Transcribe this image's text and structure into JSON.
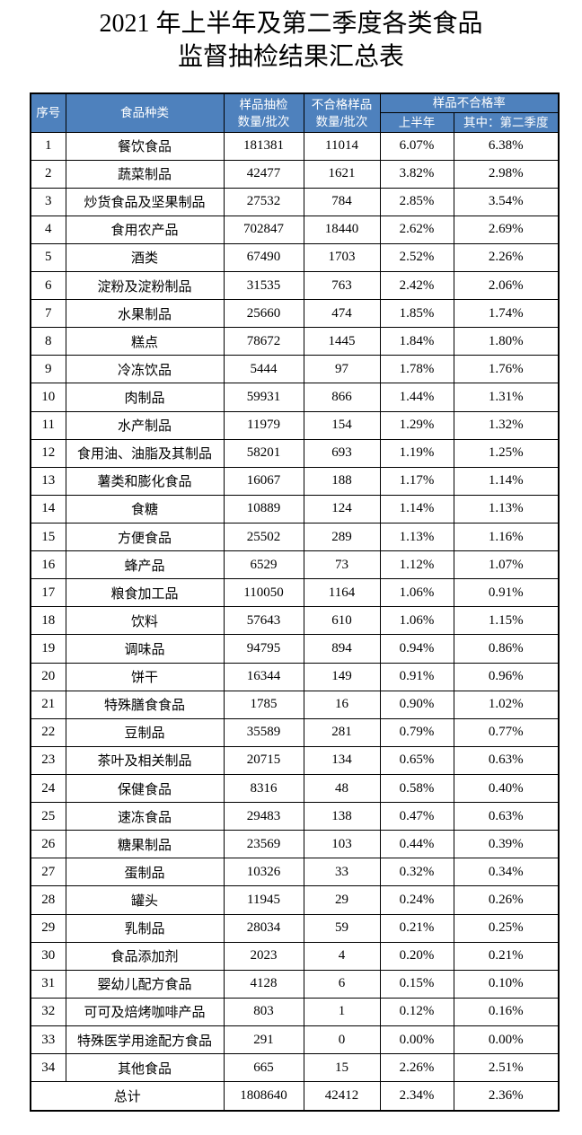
{
  "title": {
    "line1": "2021 年上半年及第二季度各类食品",
    "line2": "监督抽检结果汇总表"
  },
  "colors": {
    "header_bg": "#4E81BD",
    "header_text": "#FFFFFF",
    "border": "#000000"
  },
  "table": {
    "header": {
      "col_index": "序号",
      "col_category": "食品种类",
      "col_sampled_line1": "样品抽检",
      "col_sampled_line2": "数量/批次",
      "col_failed_line1": "不合格样品",
      "col_failed_line2": "数量/批次",
      "col_rate_group": "样品不合格率",
      "col_rate_h1": "上半年",
      "col_rate_q2": "其中：第二季度"
    },
    "rows": [
      [
        "1",
        "餐饮食品",
        "181381",
        "11014",
        "6.07%",
        "6.38%"
      ],
      [
        "2",
        "蔬菜制品",
        "42477",
        "1621",
        "3.82%",
        "2.98%"
      ],
      [
        "3",
        "炒货食品及坚果制品",
        "27532",
        "784",
        "2.85%",
        "3.54%"
      ],
      [
        "4",
        "食用农产品",
        "702847",
        "18440",
        "2.62%",
        "2.69%"
      ],
      [
        "5",
        "酒类",
        "67490",
        "1703",
        "2.52%",
        "2.26%"
      ],
      [
        "6",
        "淀粉及淀粉制品",
        "31535",
        "763",
        "2.42%",
        "2.06%"
      ],
      [
        "7",
        "水果制品",
        "25660",
        "474",
        "1.85%",
        "1.74%"
      ],
      [
        "8",
        "糕点",
        "78672",
        "1445",
        "1.84%",
        "1.80%"
      ],
      [
        "9",
        "冷冻饮品",
        "5444",
        "97",
        "1.78%",
        "1.76%"
      ],
      [
        "10",
        "肉制品",
        "59931",
        "866",
        "1.44%",
        "1.31%"
      ],
      [
        "11",
        "水产制品",
        "11979",
        "154",
        "1.29%",
        "1.32%"
      ],
      [
        "12",
        "食用油、油脂及其制品",
        "58201",
        "693",
        "1.19%",
        "1.25%"
      ],
      [
        "13",
        "薯类和膨化食品",
        "16067",
        "188",
        "1.17%",
        "1.14%"
      ],
      [
        "14",
        "食糖",
        "10889",
        "124",
        "1.14%",
        "1.13%"
      ],
      [
        "15",
        "方便食品",
        "25502",
        "289",
        "1.13%",
        "1.16%"
      ],
      [
        "16",
        "蜂产品",
        "6529",
        "73",
        "1.12%",
        "1.07%"
      ],
      [
        "17",
        "粮食加工品",
        "110050",
        "1164",
        "1.06%",
        "0.91%"
      ],
      [
        "18",
        "饮料",
        "57643",
        "610",
        "1.06%",
        "1.15%"
      ],
      [
        "19",
        "调味品",
        "94795",
        "894",
        "0.94%",
        "0.86%"
      ],
      [
        "20",
        "饼干",
        "16344",
        "149",
        "0.91%",
        "0.96%"
      ],
      [
        "21",
        "特殊膳食食品",
        "1785",
        "16",
        "0.90%",
        "1.02%"
      ],
      [
        "22",
        "豆制品",
        "35589",
        "281",
        "0.79%",
        "0.77%"
      ],
      [
        "23",
        "茶叶及相关制品",
        "20715",
        "134",
        "0.65%",
        "0.63%"
      ],
      [
        "24",
        "保健食品",
        "8316",
        "48",
        "0.58%",
        "0.40%"
      ],
      [
        "25",
        "速冻食品",
        "29483",
        "138",
        "0.47%",
        "0.63%"
      ],
      [
        "26",
        "糖果制品",
        "23569",
        "103",
        "0.44%",
        "0.39%"
      ],
      [
        "27",
        "蛋制品",
        "10326",
        "33",
        "0.32%",
        "0.34%"
      ],
      [
        "28",
        "罐头",
        "11945",
        "29",
        "0.24%",
        "0.26%"
      ],
      [
        "29",
        "乳制品",
        "28034",
        "59",
        "0.21%",
        "0.25%"
      ],
      [
        "30",
        "食品添加剂",
        "2023",
        "4",
        "0.20%",
        "0.21%"
      ],
      [
        "31",
        "婴幼儿配方食品",
        "4128",
        "6",
        "0.15%",
        "0.10%"
      ],
      [
        "32",
        "可可及焙烤咖啡产品",
        "803",
        "1",
        "0.12%",
        "0.16%"
      ],
      [
        "33",
        "特殊医学用途配方食品",
        "291",
        "0",
        "0.00%",
        "0.00%"
      ],
      [
        "34",
        "其他食品",
        "665",
        "15",
        "2.26%",
        "2.51%"
      ]
    ],
    "total": {
      "label": "总计",
      "sampled": "1808640",
      "failed": "42412",
      "rate_h1": "2.34%",
      "rate_q2": "2.36%"
    }
  }
}
